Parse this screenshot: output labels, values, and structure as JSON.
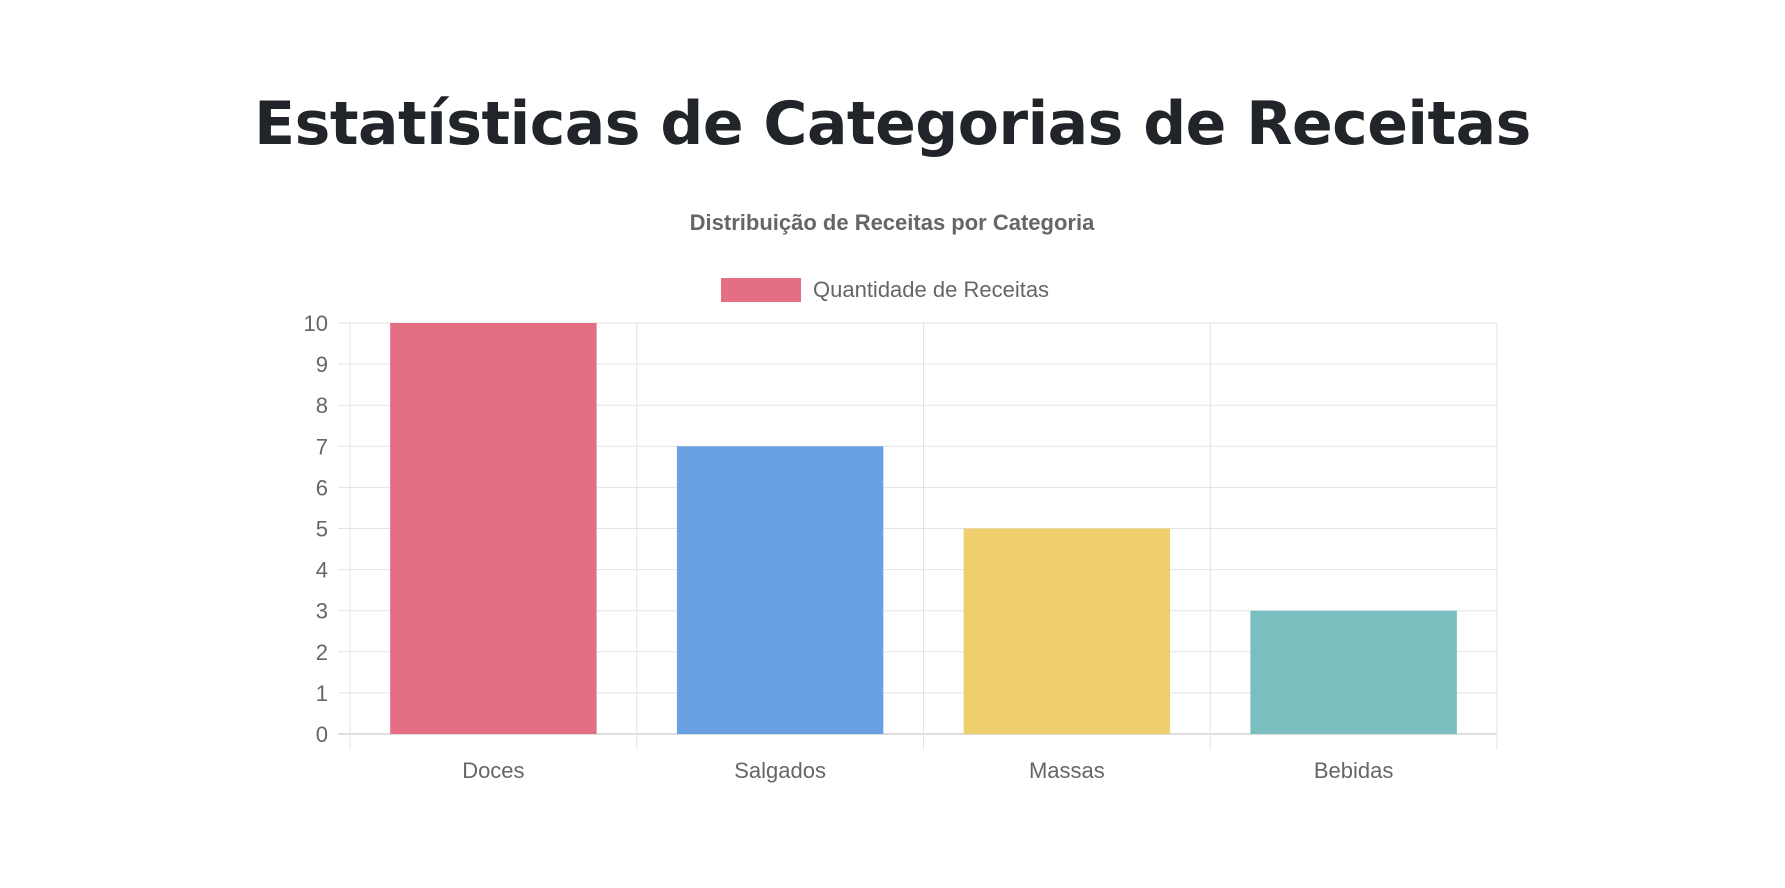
{
  "page": {
    "title": "Estatísticas de Categorias de Receitas"
  },
  "chart_data": {
    "type": "bar",
    "title": "Distribuição de Receitas por Categoria",
    "categories": [
      "Doces",
      "Salgados",
      "Massas",
      "Bebidas"
    ],
    "series": [
      {
        "name": "Quantidade de Receitas",
        "values": [
          10,
          7,
          5,
          3
        ],
        "colors": [
          "#e46f84",
          "#69a1e3",
          "#efce6d",
          "#7bbebf"
        ]
      }
    ],
    "legend_color": "#e46f84",
    "ylim": [
      0,
      10
    ],
    "yticks": [
      0,
      1,
      2,
      3,
      4,
      5,
      6,
      7,
      8,
      9,
      10
    ],
    "grid": true,
    "legend_position": "top-center"
  }
}
